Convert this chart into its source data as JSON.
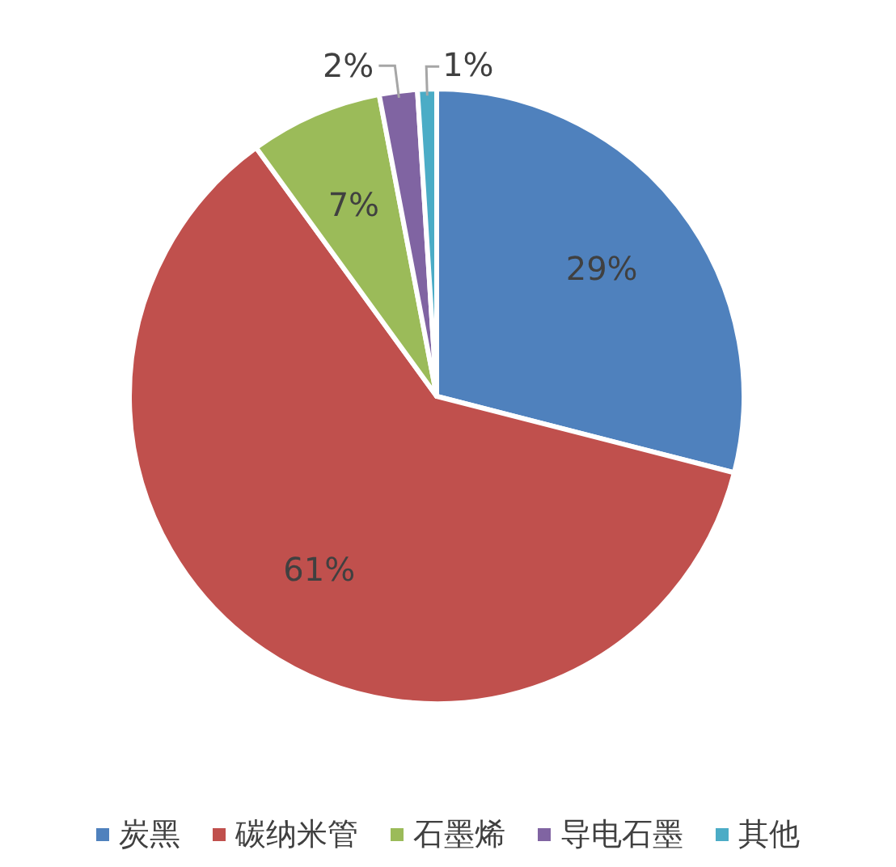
{
  "chart_data": {
    "type": "pie",
    "categories": [
      "炭黑",
      "碳纳米管",
      "石墨烯",
      "导电石墨",
      "其他"
    ],
    "values": [
      29,
      61,
      7,
      2,
      1
    ],
    "value_labels": [
      "29%",
      "61%",
      "7%",
      "2%",
      "1%"
    ],
    "colors": [
      "#4f81bd",
      "#c0504d",
      "#9bbb59",
      "#8064a2",
      "#4bacc6"
    ],
    "legend": "bottom"
  }
}
